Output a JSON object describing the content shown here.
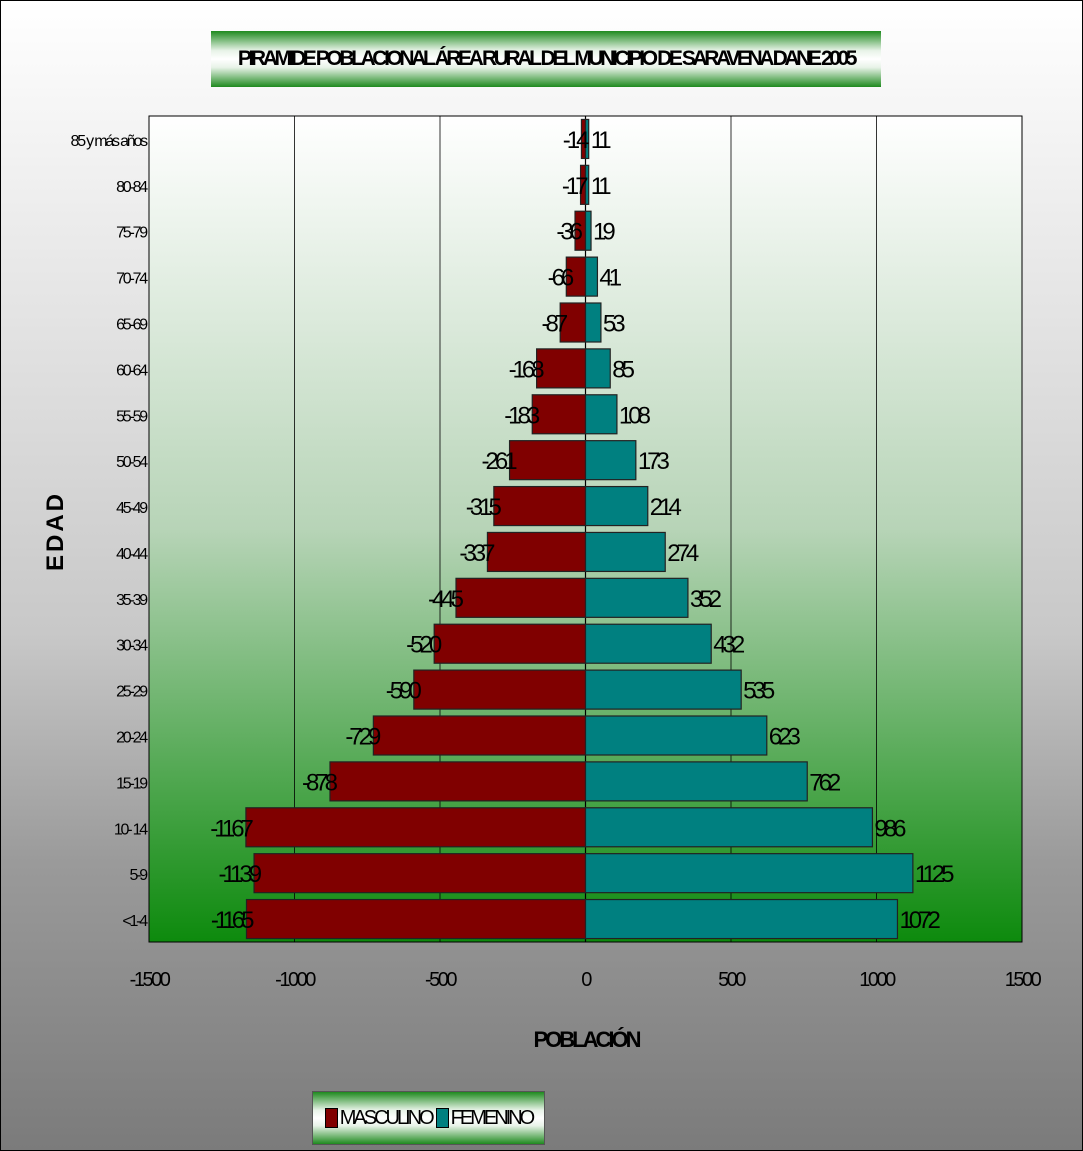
{
  "chart_data": {
    "type": "bar",
    "orientation": "horizontal",
    "title": "PIRAMIDE POBLACIONAL ÁREA RURAL DEL MUNICIPIO DE SARAVENA DANE 2005",
    "xlabel": "POBLACIÓN",
    "ylabel": "EDAD",
    "xlim": [
      -1500,
      1500
    ],
    "xticks": [
      "-1500",
      "-1000",
      "-500",
      "0",
      "500",
      "1000",
      "1500"
    ],
    "xtick_values": [
      -1500,
      -1000,
      -500,
      0,
      500,
      1000,
      1500
    ],
    "categories": [
      "85 y más años",
      "80-84",
      "75-79",
      "70-74",
      "65-69",
      "60-64",
      "55-59",
      "50-54",
      "45-49",
      "40-44",
      "35-39",
      "30-34",
      "25-29",
      "20-24",
      "15-19",
      "10- 14",
      "5-9",
      "<1-4"
    ],
    "series": [
      {
        "name": "MASCULINO",
        "color": "#800000",
        "values": [
          -14,
          -17,
          -36,
          -66,
          -87,
          -168,
          -183,
          -261,
          -315,
          -337,
          -445,
          -520,
          -590,
          -729,
          -878,
          -1167,
          -1139,
          -1165
        ]
      },
      {
        "name": "FEMENINO",
        "color": "#008080",
        "values": [
          11,
          11,
          19,
          41,
          53,
          85,
          108,
          173,
          214,
          274,
          352,
          432,
          535,
          623,
          762,
          986,
          1125,
          1072
        ]
      }
    ],
    "grid": "vertical",
    "legend": "bottom-left"
  }
}
